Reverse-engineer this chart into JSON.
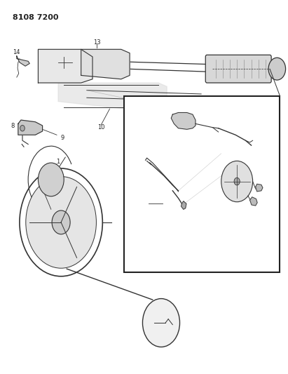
{
  "title": "8108 7200",
  "background_color": "#ffffff",
  "line_color": "#333333",
  "text_color": "#222222"
}
